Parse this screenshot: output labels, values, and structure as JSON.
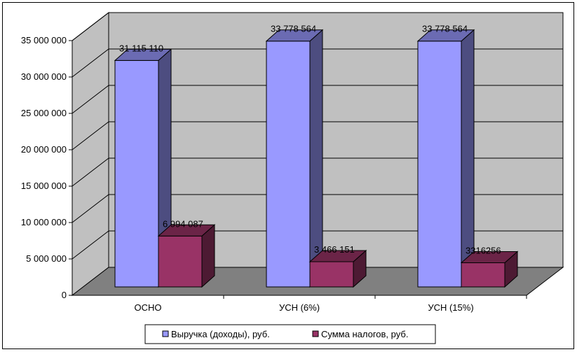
{
  "chart_data": {
    "type": "bar",
    "categories": [
      "ОСНО",
      "УСН (6%)",
      "УСН (15%)"
    ],
    "series": [
      {
        "name": "Выручка (доходы), руб.",
        "values": [
          31115110,
          33778564,
          33778564
        ],
        "labels": [
          "31 115 110",
          "33 778 564",
          "33 778 564"
        ],
        "color": "#9999ff",
        "side_color": "#4d4d80",
        "top_color": "#6b6bb3"
      },
      {
        "name": "Сумма налогов, руб.",
        "values": [
          6994087,
          3466151,
          3316256
        ],
        "labels": [
          "6 994 087",
          "3 466 151",
          "3316256"
        ],
        "color": "#993366",
        "side_color": "#4d1a33",
        "top_color": "#6b2447"
      }
    ],
    "y_ticks": [
      0,
      5000000,
      10000000,
      15000000,
      20000000,
      25000000,
      30000000,
      35000000
    ],
    "y_tick_labels": [
      "0",
      "5 000 000",
      "10 000 000",
      "15 000 000",
      "20 000 000",
      "25 000 000",
      "30 000 000",
      "35 000 000"
    ],
    "ylim": [
      0,
      35000000
    ],
    "grid": true,
    "legend_position": "bottom",
    "style": "3d-clustered-column",
    "colors": {
      "back_wall": "#c0c0c0",
      "side_wall": "#c0c0c0",
      "floor": "#808080"
    }
  }
}
